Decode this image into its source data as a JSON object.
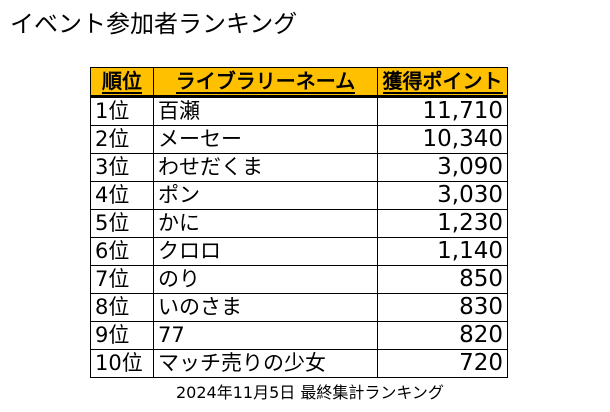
{
  "title": "イベント参加者ランキング",
  "table": {
    "headers": {
      "rank": "順位",
      "name": "ライブラリーネーム",
      "points": "獲得ポイント"
    },
    "header_color": "#ffc000",
    "rows": [
      {
        "rank": "1位",
        "name": "百瀬",
        "points": "11,710"
      },
      {
        "rank": "2位",
        "name": "メーセー",
        "points": "10,340"
      },
      {
        "rank": "3位",
        "name": "わせだくま",
        "points": "3,090"
      },
      {
        "rank": "4位",
        "name": "ポン",
        "points": "3,030"
      },
      {
        "rank": "5位",
        "name": "かに",
        "points": "1,230"
      },
      {
        "rank": "6位",
        "name": "クロロ",
        "points": "1,140"
      },
      {
        "rank": "7位",
        "name": "のり",
        "points": "850"
      },
      {
        "rank": "8位",
        "name": "いのさま",
        "points": "830"
      },
      {
        "rank": "9位",
        "name": "77",
        "points": "820"
      },
      {
        "rank": "10位",
        "name": "マッチ売りの少女",
        "points": "720"
      }
    ]
  },
  "caption": "2024年11月5日 最終集計ランキング"
}
